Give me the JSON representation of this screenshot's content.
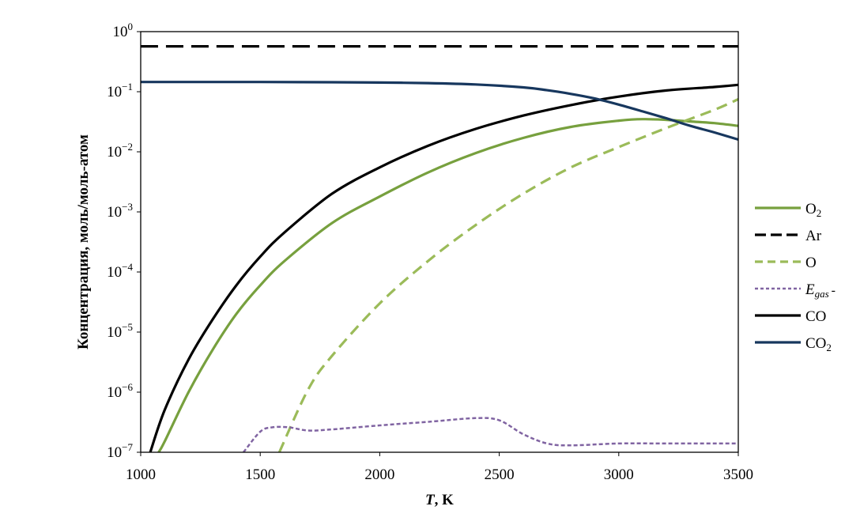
{
  "chart_data": {
    "type": "line",
    "xlabel": "T, K",
    "ylabel": "Концентрация, моль/моль-атом",
    "xlim": [
      1000,
      3500
    ],
    "xticks": [
      "1000",
      "1500",
      "2000",
      "2500",
      "3000",
      "3500"
    ],
    "ylim_log10": [
      -7,
      0
    ],
    "yscale": "log",
    "yticks": [
      {
        "base": "10",
        "exp": "0"
      },
      {
        "base": "10",
        "exp": "−1"
      },
      {
        "base": "10",
        "exp": "−2"
      },
      {
        "base": "10",
        "exp": "−3"
      },
      {
        "base": "10",
        "exp": "−4"
      },
      {
        "base": "10",
        "exp": "−5"
      },
      {
        "base": "10",
        "exp": "−6"
      },
      {
        "base": "10",
        "exp": "−7"
      }
    ],
    "grid": false,
    "legend_position": "right",
    "series": [
      {
        "name": "O2",
        "label_main": "O",
        "label_sub": "2",
        "label_suffix": "",
        "color": "#77a03e",
        "style": "solid",
        "x": [
          1075,
          1100,
          1200,
          1300,
          1400,
          1500,
          1600,
          1800,
          2000,
          2200,
          2400,
          2600,
          2800,
          3000,
          3100,
          3200,
          3300,
          3400,
          3500
        ],
        "y": [
          1e-07,
          1.5e-07,
          1e-06,
          5e-06,
          2e-05,
          6e-05,
          0.00015,
          0.00065,
          0.0018,
          0.0045,
          0.0095,
          0.017,
          0.026,
          0.033,
          0.035,
          0.034,
          0.032,
          0.03,
          0.027
        ]
      },
      {
        "name": "Ar",
        "label_main": "Ar",
        "label_sub": "",
        "label_suffix": "",
        "color": "#000000",
        "style": "long-dash",
        "x": [
          1000,
          3500
        ],
        "y": [
          0.57,
          0.57
        ]
      },
      {
        "name": "O",
        "label_main": "O",
        "label_sub": "",
        "label_suffix": "",
        "color": "#9bbb59",
        "style": "dash",
        "x": [
          1580,
          1700,
          1800,
          2000,
          2200,
          2400,
          2600,
          2800,
          3000,
          3200,
          3400,
          3500
        ],
        "y": [
          1e-07,
          1.1e-06,
          4e-06,
          3e-05,
          0.00015,
          0.0006,
          0.002,
          0.0055,
          0.012,
          0.025,
          0.05,
          0.075
        ]
      },
      {
        "name": "Egas-",
        "label_main": "E",
        "label_sub": "gas",
        "label_suffix": "-",
        "italic": true,
        "color": "#8064a2",
        "style": "dot",
        "x": [
          1430,
          1500,
          1550,
          1620,
          1700,
          1800,
          2000,
          2200,
          2400,
          2500,
          2600,
          2700,
          2800,
          3000,
          3200,
          3500
        ],
        "y": [
          1e-07,
          2.2e-07,
          2.6e-07,
          2.6e-07,
          2.3e-07,
          2.4e-07,
          2.8e-07,
          3.2e-07,
          3.7e-07,
          3.4e-07,
          2e-07,
          1.4e-07,
          1.3e-07,
          1.4e-07,
          1.4e-07,
          1.4e-07
        ]
      },
      {
        "name": "CO",
        "label_main": "CO",
        "label_sub": "",
        "label_suffix": "",
        "color": "#000000",
        "style": "solid",
        "x": [
          1040,
          1100,
          1200,
          1300,
          1400,
          1500,
          1600,
          1800,
          2000,
          2200,
          2400,
          2600,
          2800,
          3000,
          3200,
          3400,
          3500
        ],
        "y": [
          1e-07,
          5e-07,
          3.5e-06,
          1.6e-05,
          6e-05,
          0.00018,
          0.00045,
          0.002,
          0.0055,
          0.0125,
          0.024,
          0.04,
          0.06,
          0.083,
          0.105,
          0.12,
          0.13
        ]
      },
      {
        "name": "CO2",
        "label_main": "CO",
        "label_sub": "2",
        "label_suffix": "",
        "color": "#17375e",
        "style": "solid",
        "x": [
          1000,
          1500,
          1800,
          2000,
          2200,
          2400,
          2600,
          2700,
          2800,
          2900,
          3000,
          3100,
          3200,
          3300,
          3400,
          3500
        ],
        "y": [
          0.145,
          0.145,
          0.144,
          0.142,
          0.139,
          0.132,
          0.118,
          0.106,
          0.092,
          0.077,
          0.061,
          0.047,
          0.036,
          0.027,
          0.021,
          0.016
        ]
      }
    ]
  }
}
